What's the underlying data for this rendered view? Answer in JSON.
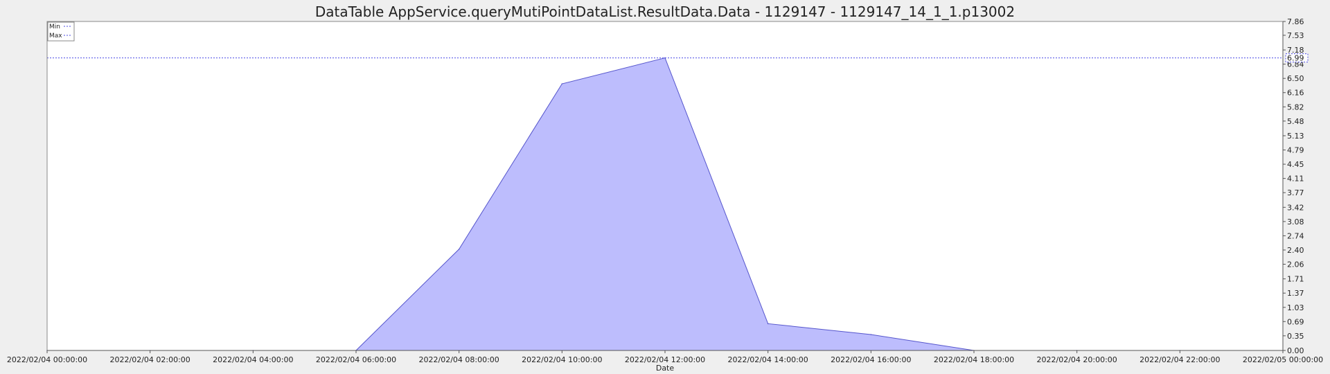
{
  "chart_data": {
    "type": "area",
    "title": "DataTable AppService.queryMutiPointDataList.ResultData.Data - 1129147 - 1129147_14_1_1.p13002",
    "xlabel": "Date",
    "ylabel": "",
    "x_tick_labels": [
      "2022/02/04 00:00:00",
      "2022/02/04 02:00:00",
      "2022/02/04 04:00:00",
      "2022/02/04 06:00:00",
      "2022/02/04 08:00:00",
      "2022/02/04 10:00:00",
      "2022/02/04 12:00:00",
      "2022/02/04 14:00:00",
      "2022/02/04 16:00:00",
      "2022/02/04 18:00:00",
      "2022/02/04 20:00:00",
      "2022/02/04 22:00:00",
      "2022/02/05 00:00:00"
    ],
    "y_tick_labels": [
      "0.00",
      "0.35",
      "0.69",
      "1.03",
      "1.37",
      "1.71",
      "2.06",
      "2.40",
      "2.74",
      "3.08",
      "3.42",
      "3.77",
      "4.11",
      "4.45",
      "4.79",
      "5.13",
      "5.48",
      "5.82",
      "6.16",
      "6.50",
      "6.84",
      "7.18",
      "7.53",
      "7.86"
    ],
    "y_marker_label": "6.99",
    "y_marker_value": 6.99,
    "ylim": [
      0,
      7.86
    ],
    "xlim": [
      "2022/02/04 00:00:00",
      "2022/02/05 00:00:00"
    ],
    "x": [
      "2022/02/04 00:00:00",
      "2022/02/04 02:00:00",
      "2022/02/04 04:00:00",
      "2022/02/04 06:00:00",
      "2022/02/04 08:00:00",
      "2022/02/04 10:00:00",
      "2022/02/04 12:00:00",
      "2022/02/04 14:00:00",
      "2022/02/04 16:00:00",
      "2022/02/04 18:00:00",
      "2022/02/04 20:00:00",
      "2022/02/04 22:00:00",
      "2022/02/05 00:00:00"
    ],
    "series": [
      {
        "name": "Min",
        "values": [
          0,
          0,
          0,
          0,
          2.42,
          6.37,
          6.99,
          0.64,
          0.38,
          0,
          0,
          0,
          0
        ]
      },
      {
        "name": "Max",
        "values": [
          0,
          0,
          0,
          0,
          2.42,
          6.37,
          6.99,
          0.64,
          0.38,
          0,
          0,
          0,
          0
        ]
      }
    ],
    "legend": {
      "position": "top-left",
      "entries": [
        "Min",
        "Max"
      ]
    },
    "grid": false,
    "colors": {
      "fill": "#bdbdfd",
      "line": "#5555cc",
      "marker_line": "#4a4ae6"
    }
  }
}
